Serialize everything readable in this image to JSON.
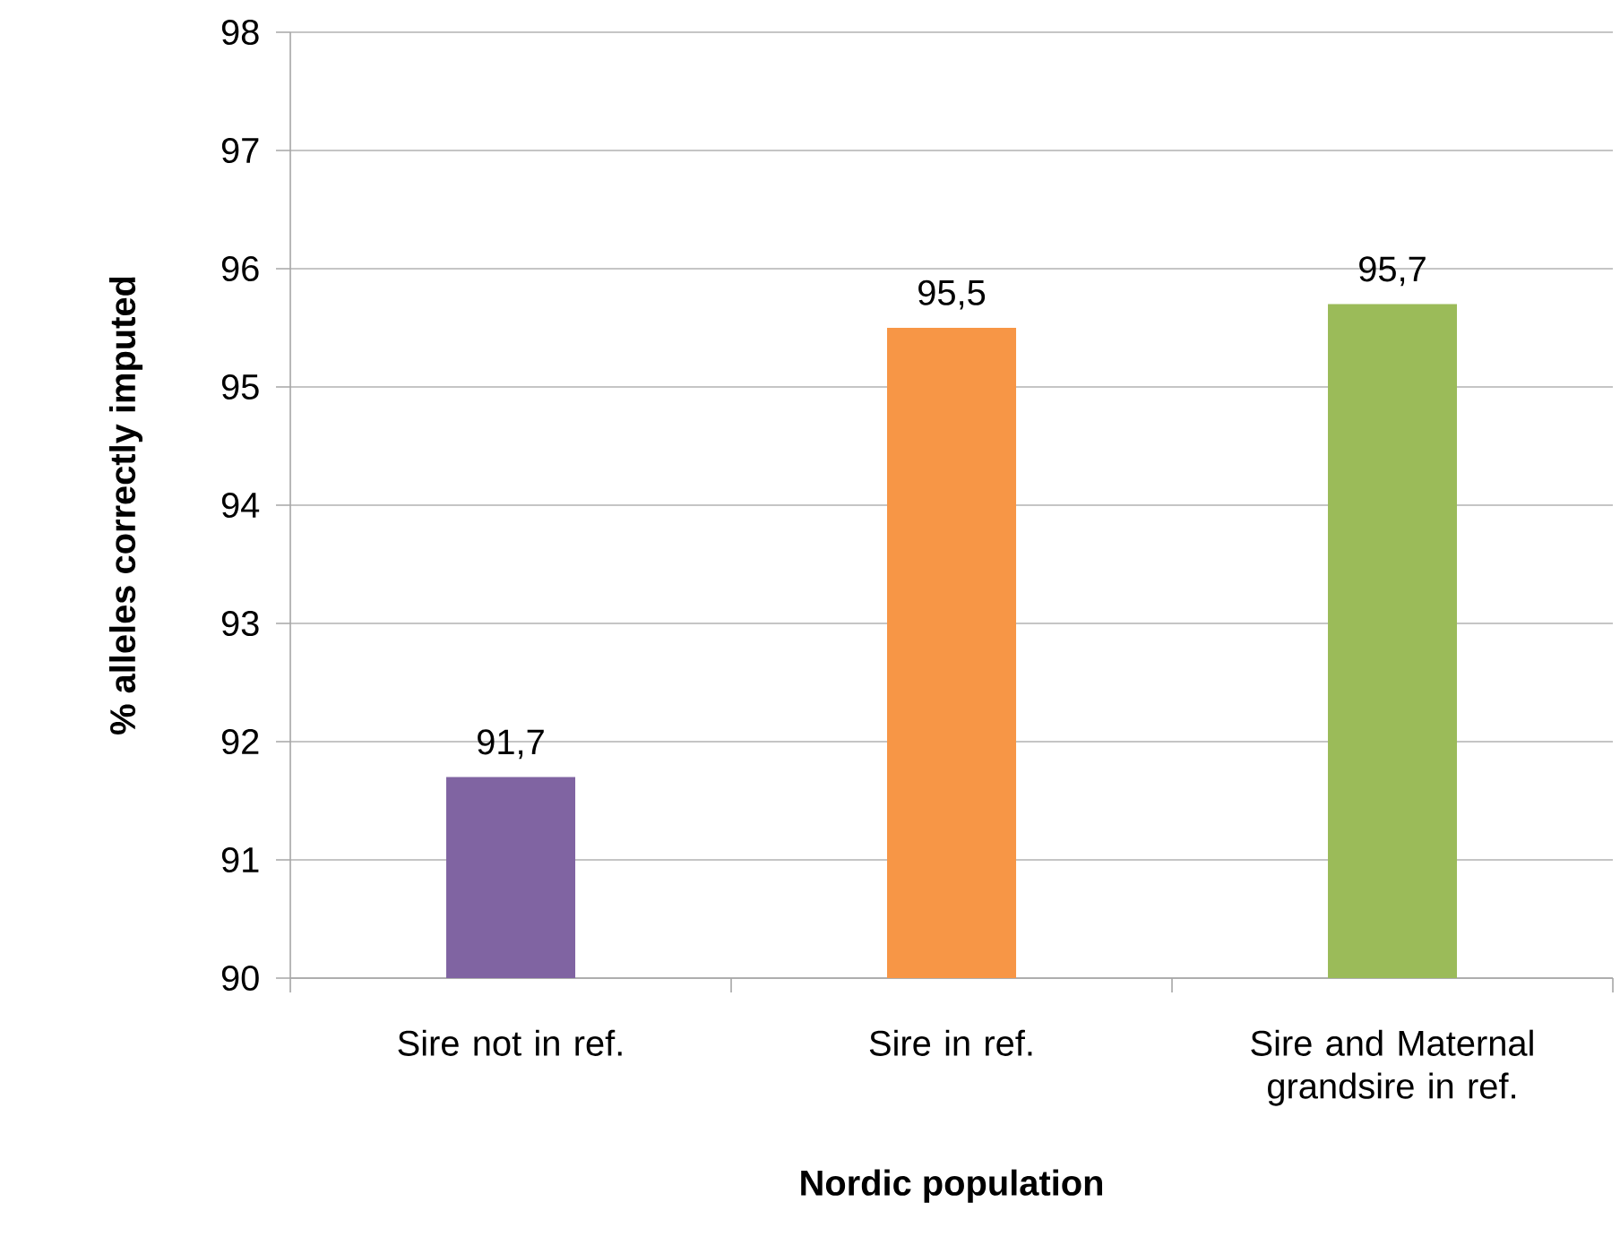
{
  "chart_data": {
    "type": "bar",
    "categories": [
      "Sire not in ref.",
      "Sire in ref.",
      "Sire and Maternal grandsire in ref."
    ],
    "values": [
      91.7,
      95.5,
      95.7
    ],
    "colors": [
      "#8064a2",
      "#f79646",
      "#9bbb59"
    ],
    "value_labels": [
      "91,7",
      "95,5",
      "95,7"
    ],
    "xlabel": "Nordic population",
    "ylabel": "% alleles correctly imputed",
    "ylim": [
      90,
      98
    ],
    "yticks": [
      90,
      91,
      92,
      93,
      94,
      95,
      96,
      97,
      98
    ],
    "grid": "y"
  }
}
